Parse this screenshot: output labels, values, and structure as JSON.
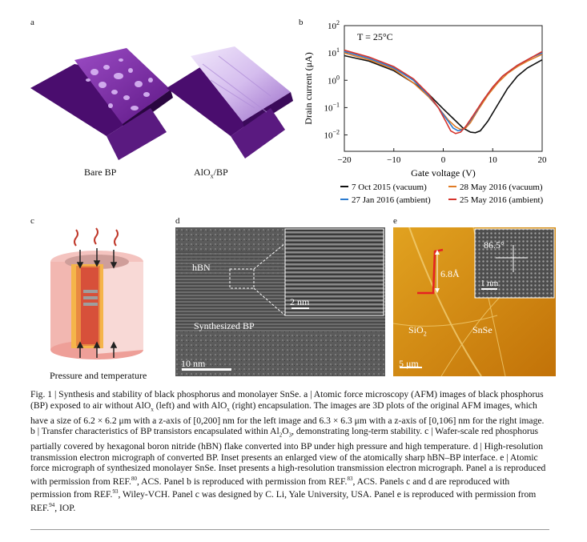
{
  "panels": {
    "a": {
      "label": "a",
      "left_caption": "Bare BP",
      "right_caption_main": "AlO",
      "right_caption_sub": "x",
      "right_caption_tail": "/BP"
    },
    "b": {
      "label": "b"
    },
    "c": {
      "label": "c",
      "caption": "Pressure and temperature"
    },
    "d": {
      "label": "d",
      "tag_hbn": "hBN",
      "tag_synth": "Synthesized BP",
      "scale_main": "10 nm",
      "scale_inset": "2 nm"
    },
    "e": {
      "label": "e",
      "step_height": "6.8Å",
      "angle": "86.5°",
      "scale_inset": "1 nm",
      "sio2_main": "SiO",
      "sio2_sub": "2",
      "snse": "SnSe",
      "scale_main": "5 μm"
    }
  },
  "chart_data": {
    "type": "line",
    "annotation": "T = 25°C",
    "xlabel": "Gate voltage (V)",
    "ylabel": "Drain current (μA)",
    "xlim": [
      -20,
      20
    ],
    "ylim_log10": [
      -2.6,
      2
    ],
    "yscale": "log",
    "x_ticks": [
      "−20",
      "−10",
      "0",
      "10",
      "20"
    ],
    "y_ticks": [
      {
        "base": "10",
        "exp": "2"
      },
      {
        "base": "10",
        "exp": "1"
      },
      {
        "base": "10",
        "exp": "0"
      },
      {
        "base": "10",
        "exp": "−1"
      },
      {
        "base": "10",
        "exp": "−2"
      }
    ],
    "legend_position": "bottom",
    "series": [
      {
        "name": "7 Oct 2015 (vacuum)",
        "color": "#111111",
        "x": [
          -20,
          -15,
          -10,
          -6,
          -3,
          0,
          2,
          4,
          5.5,
          6.5,
          7.5,
          9,
          11,
          13,
          15,
          17,
          20
        ],
        "y": [
          0.9,
          0.7,
          0.35,
          -0.1,
          -0.5,
          -1.05,
          -1.4,
          -1.75,
          -1.9,
          -1.92,
          -1.85,
          -1.5,
          -0.9,
          -0.3,
          0.15,
          0.45,
          0.75
        ]
      },
      {
        "name": "28 May 2016 (vacuum)",
        "color": "#e07b25",
        "x": [
          -20,
          -15,
          -10,
          -6,
          -3,
          -1,
          1,
          2.5,
          3.5,
          4.5,
          5.5,
          7,
          9,
          11,
          13,
          15,
          17,
          20
        ],
        "y": [
          1.0,
          0.75,
          0.4,
          -0.1,
          -0.6,
          -1.0,
          -1.45,
          -1.7,
          -1.8,
          -1.75,
          -1.55,
          -1.1,
          -0.55,
          -0.1,
          0.25,
          0.5,
          0.7,
          0.95
        ]
      },
      {
        "name": "27 Jan 2016 (ambient)",
        "color": "#2b7bd0",
        "x": [
          -20,
          -15,
          -10,
          -6,
          -3,
          -1,
          1,
          2,
          3,
          4,
          5,
          6.5,
          8,
          10,
          12,
          15,
          18,
          20
        ],
        "y": [
          1.05,
          0.8,
          0.45,
          0.0,
          -0.55,
          -1.0,
          -1.5,
          -1.75,
          -1.85,
          -1.8,
          -1.6,
          -1.2,
          -0.75,
          -0.25,
          0.15,
          0.55,
          0.85,
          1.0
        ]
      },
      {
        "name": "25 May 2016 (ambient)",
        "color": "#d6342c",
        "x": [
          -20,
          -15,
          -10,
          -6,
          -3,
          -1,
          0.5,
          1.5,
          2.5,
          3.5,
          4.5,
          6,
          8,
          10,
          12,
          15,
          18,
          20
        ],
        "y": [
          1.1,
          0.85,
          0.5,
          0.05,
          -0.5,
          -1.0,
          -1.5,
          -1.85,
          -1.95,
          -1.9,
          -1.7,
          -1.3,
          -0.75,
          -0.25,
          0.15,
          0.55,
          0.85,
          1.05
        ]
      }
    ]
  },
  "caption": {
    "fig_label": "Fig. 1 |",
    "title": " Synthesis and stability of black phosphorus and monolayer SnSe. ",
    "a_label": "a",
    "a_text": " | Atomic force microscopy (AFM) images of black phosphorus (BP) exposed to air without AlO",
    "x1": "x",
    "a_text2": " (left) and with AlO",
    "x2": "x",
    "a_text3": " (right) encapsulation. The images are 3D plots of the original AFM images, which have a size of 6.2 × 6.2 μm with a z-axis of [0,200] nm for the left image and 6.3 × 6.3 μm with a z-axis of [0,106] nm for the right image. ",
    "b_label": "b",
    "b_text": " | Transfer characteristics of BP transistors encapsulated within Al",
    "sub2": "2",
    "o": "O",
    "sub3": "3",
    "b_text2": ", demonstrating long-term stability. ",
    "c_label": "c",
    "c_text": " | Wafer-scale red phosphorus partially covered by hexagonal boron nitride (hBN) flake converted into BP under high pressure and high temperature. ",
    "d_label": "d",
    "d_text": " | High-resolution transmission electron micrograph of converted BP. Inset presents an enlarged view of the atomically sharp hBN–BP interface. ",
    "e_label": "e",
    "e_text": " | Atomic force micrograph of synthesized monolayer SnSe. Inset presents a high-resolution transmission electron micrograph. Panel a is reproduced with permission from REF.",
    "ref1": "80",
    "t1": ", ACS. Panel b is reproduced with permission from REF.",
    "ref2": "83",
    "t2": ", ACS. Panels c and d are reproduced with permission from REF.",
    "ref3": "93",
    "t3": ", Wiley-VCH. Panel c was designed by C. Li, Yale University, USA. Panel e is reproduced with permission from REF.",
    "ref4": "94",
    "t4": ", IOP."
  },
  "colors": {
    "afm_purple": "#7a2a9c",
    "afm_light": "#c9a8e8",
    "pressure_red": "#c0392b",
    "afm_e_bg": "#d7900f"
  }
}
